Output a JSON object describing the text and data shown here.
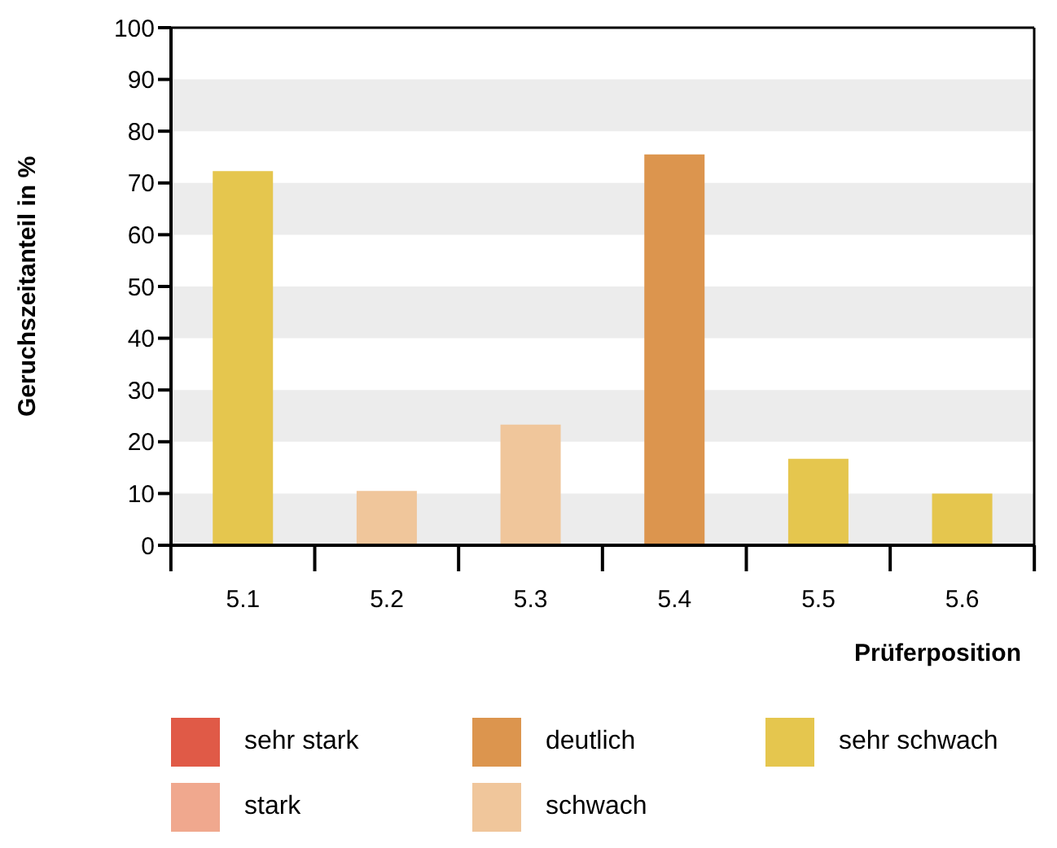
{
  "chart_data": {
    "type": "bar",
    "stacked": true,
    "xlabel": "Prüferposition",
    "ylabel": "Geruchszeitanteil in %",
    "categories": [
      "5.1",
      "5.2",
      "5.3",
      "5.4",
      "5.5",
      "5.6"
    ],
    "series": [
      {
        "name": "sehr stark",
        "color": "#e05a47",
        "values": [
          null,
          null,
          null,
          null,
          null,
          null
        ]
      },
      {
        "name": "stark",
        "color": "#f0a88e",
        "values": [
          null,
          null,
          null,
          null,
          null,
          null
        ]
      },
      {
        "name": "deutlich",
        "color": "#dc954e",
        "values": [
          null,
          null,
          null,
          75.5,
          null,
          null
        ]
      },
      {
        "name": "schwach",
        "color": "#f0c69b",
        "values": [
          null,
          10.5,
          23.3,
          null,
          null,
          null
        ]
      },
      {
        "name": "sehr schwach",
        "color": "#e5c64e",
        "values": [
          72.3,
          null,
          null,
          null,
          16.7,
          10
        ]
      }
    ],
    "ylim": [
      0,
      100
    ],
    "yticks": [
      0,
      10,
      20,
      30,
      40,
      50,
      60,
      70,
      80,
      90,
      100
    ],
    "legend": "bottom",
    "bands": [
      {
        "axis": "y",
        "from": 0,
        "to": 10,
        "color": "#ececec"
      },
      {
        "axis": "y",
        "from": 20,
        "to": 30,
        "color": "#ececec"
      },
      {
        "axis": "y",
        "from": 40,
        "to": 50,
        "color": "#ececec"
      },
      {
        "axis": "y",
        "from": 60,
        "to": 70,
        "color": "#ececec"
      },
      {
        "axis": "y",
        "from": 80,
        "to": 90,
        "color": "#ececec"
      }
    ]
  }
}
